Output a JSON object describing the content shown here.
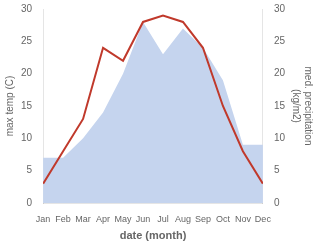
{
  "chart_data": {
    "type": "line",
    "categories": [
      "Jan",
      "Feb",
      "Mar",
      "Apr",
      "May",
      "Jun",
      "Jul",
      "Aug",
      "Sep",
      "Oct",
      "Nov",
      "Dec"
    ],
    "series": [
      {
        "type": "area",
        "color": "#c5d4ee",
        "axis": "y2",
        "values": [
          7,
          7,
          10,
          14,
          20,
          28,
          23,
          27,
          24,
          19,
          9,
          9
        ]
      },
      {
        "type": "line",
        "color": "#c0392b",
        "values": [
          3,
          8,
          13,
          24,
          22,
          28,
          29,
          28,
          24,
          15,
          8,
          3
        ]
      }
    ],
    "xlabel": "date (month)",
    "ylabel": "max temp (C)",
    "y2label": "med. precipitation\n(kg/m2)",
    "ylim": [
      0,
      30
    ],
    "yticks": [
      0,
      5,
      10,
      15,
      20,
      25,
      30
    ],
    "y2lim": [
      0,
      30
    ],
    "y2ticks": [
      0,
      5,
      10,
      15,
      20,
      25,
      30
    ],
    "grid": false
  }
}
